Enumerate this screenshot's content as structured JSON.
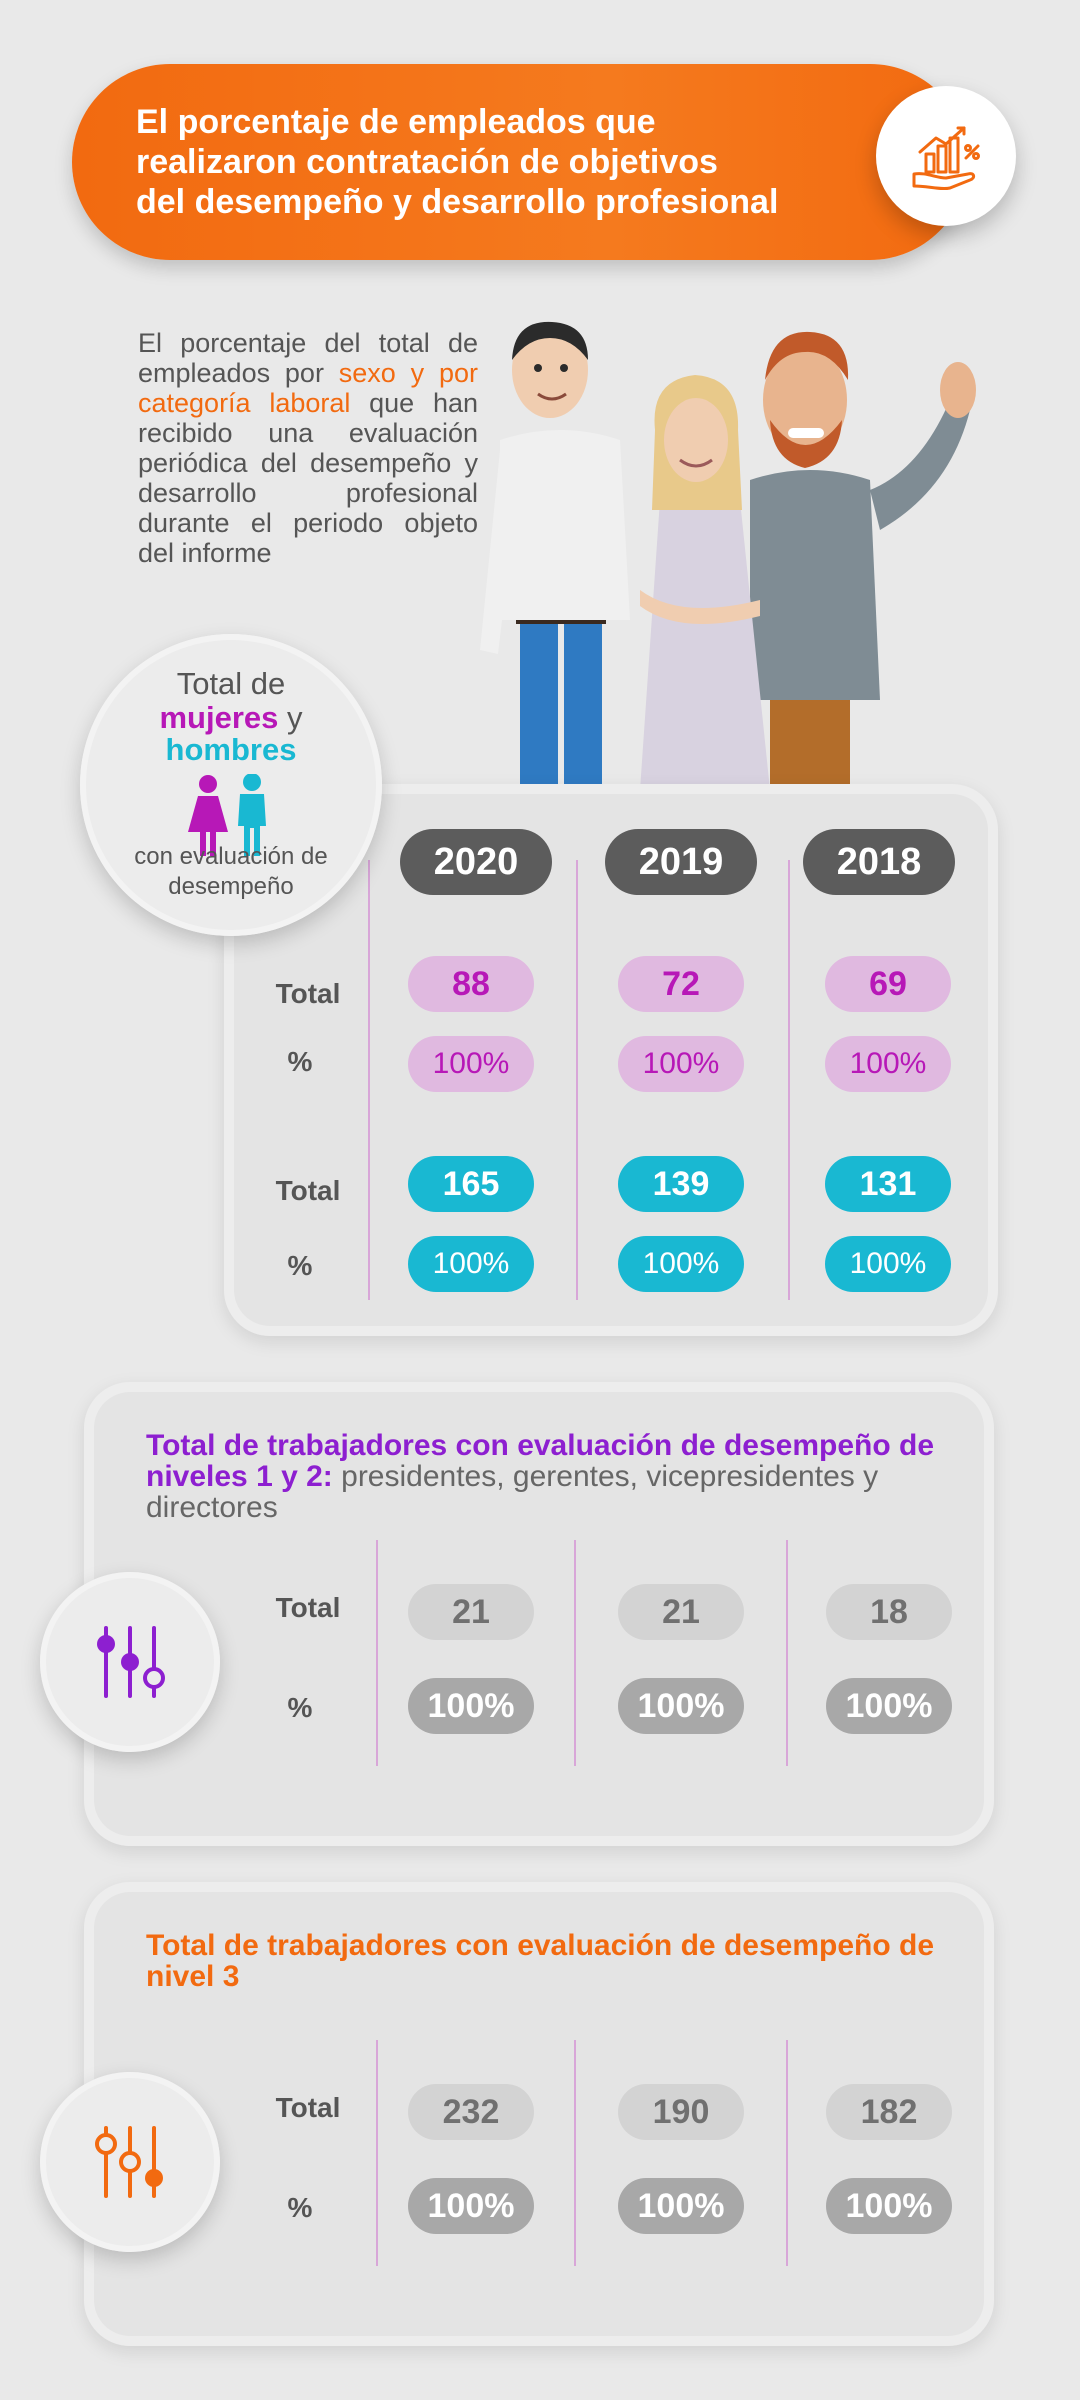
{
  "header": {
    "title": "El porcentaje de empleados que\nrealizaron contratación de objetivos\ndel desempeño y desarrollo profesional",
    "icon": "growth-chart-hand-icon"
  },
  "intro": {
    "part1": "El porcentaje del total de empleados por ",
    "highlight": "sexo y por categoría laboral",
    "part2": " que han recibido una evaluación periódica del desempeño y desarrollo profesional durante el periodo objeto del informe"
  },
  "gender_badge": {
    "line1": "Total de",
    "women_label": "mujeres",
    "joiner": " y",
    "men_label": "hombres",
    "caption": "con evaluación de desempeño"
  },
  "years": [
    "2020",
    "2019",
    "2018"
  ],
  "labels": {
    "total": "Total",
    "percent": "%"
  },
  "women": {
    "color": "#b718b7",
    "totals": [
      "88",
      "72",
      "69"
    ],
    "percents": [
      "100%",
      "100%",
      "100%"
    ]
  },
  "men": {
    "color": "#19b8d2",
    "totals": [
      "165",
      "139",
      "131"
    ],
    "percents": [
      "100%",
      "100%",
      "100%"
    ]
  },
  "levels_1_2": {
    "title_bold": "Total de trabajadores con evaluación de desempeño de niveles 1 y 2:",
    "title_rest": " presidentes, gerentes, vicepresidentes y directores",
    "color": "#8d1fd0",
    "icon": "sliders-icon",
    "totals": [
      "21",
      "21",
      "18"
    ],
    "percents": [
      "100%",
      "100%",
      "100%"
    ]
  },
  "level_3": {
    "title": "Total de trabajadores con evaluación de desempeño de nivel 3",
    "color": "#f26a10",
    "icon": "sliders-icon",
    "totals": [
      "232",
      "190",
      "182"
    ],
    "percents": [
      "100%",
      "100%",
      "100%"
    ]
  }
}
